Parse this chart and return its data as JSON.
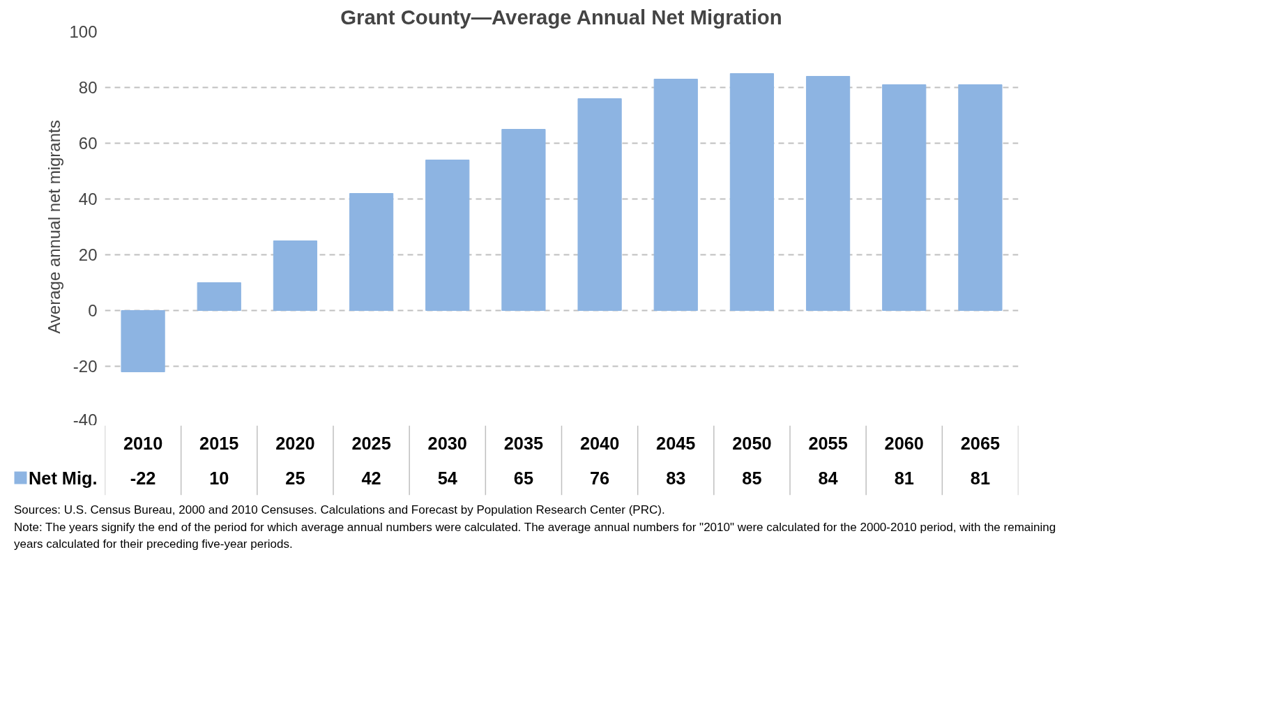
{
  "chart_data": {
    "type": "bar",
    "title": "Grant County—Average Annual Net Migration",
    "ylabel": "Average annual net migrants",
    "categories": [
      "2010",
      "2015",
      "2020",
      "2025",
      "2030",
      "2035",
      "2040",
      "2045",
      "2050",
      "2055",
      "2060",
      "2065"
    ],
    "series": [
      {
        "name": "Net Mig.",
        "color": "#8db4e2",
        "values": [
          -22,
          10,
          25,
          42,
          54,
          65,
          76,
          83,
          85,
          84,
          81,
          81
        ]
      }
    ],
    "ylim": [
      -40,
      100
    ],
    "yticks": [
      -40,
      -20,
      0,
      20,
      40,
      60,
      80,
      100
    ],
    "grid": "y",
    "data_labels": true,
    "annotations": [
      "Sources: U.S. Census Bureau, 2000 and 2010 Censuses. Calculations and Forecast by Population Research Center (PRC).",
      "Note: The years signify the end of the period for which average annual numbers were calculated. The average annual numbers for \"2010\"  were calculated for the 2000-2010 period, with the remaining years calculated for their preceding five-year periods."
    ]
  }
}
